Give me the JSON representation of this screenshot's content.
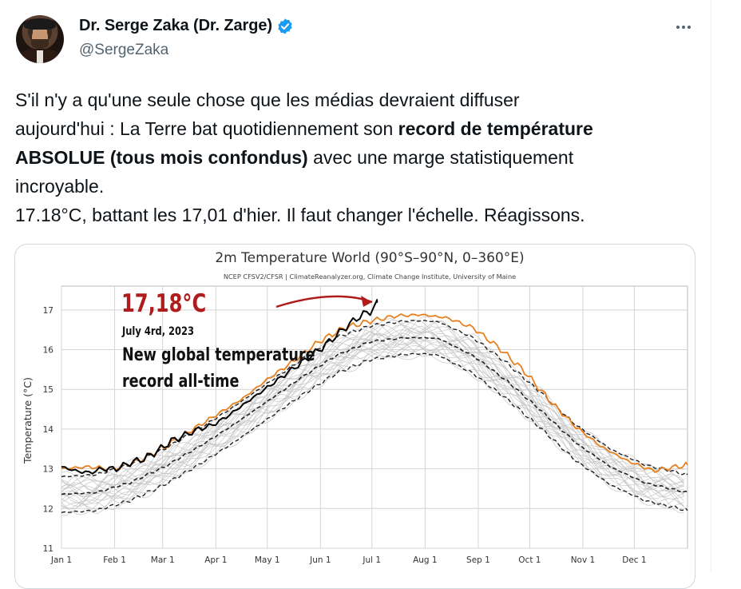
{
  "tweet": {
    "author": {
      "display_name": "Dr. Serge Zaka (Dr. Zarge)",
      "handle": "@SergeZaka",
      "verified": true,
      "verified_color": "#1d9bf0"
    },
    "more_icon": "more-dots-icon",
    "text": {
      "line1": "S'il n'y a qu'une seule chose que les médias devraient diffuser",
      "line2_prefix": "aujourd'hui : La Terre bat quotidiennement son ",
      "line2_bold": "record de température",
      "line3_bold": "ABSOLUE (tous mois confondus)",
      "line3_suffix": " avec une marge statistiquement",
      "line4": "incroyable.",
      "line5": "17.18°C, battant les 17,01 d'hier. Il faut changer l'échelle. Réagissons."
    }
  },
  "chart_data": {
    "type": "line",
    "title": "2m Temperature World (90°S–90°N, 0–360°E)",
    "subtitle": "NCEP CFSV2/CFSR | ClimateReanalyzer.org, Climate Change Institute, University of Maine",
    "ylabel": "Temperature (°C)",
    "ylim": [
      11,
      17.6
    ],
    "y_ticks": [
      "11",
      "12",
      "13",
      "14",
      "15",
      "16",
      "17"
    ],
    "x_ticks": [
      "Jan 1",
      "Feb 1",
      "Mar 1",
      "Apr 1",
      "May 1",
      "Jun 1",
      "Jul 1",
      "Aug 1",
      "Sep 1",
      "Oct 1",
      "Nov 1",
      "Dec 1"
    ],
    "x_tick_days": [
      0,
      31,
      59,
      90,
      120,
      151,
      181,
      212,
      243,
      273,
      304,
      334
    ],
    "grid": true,
    "colors": {
      "year_2023": "#000000",
      "year_2022": "#e8801f",
      "mean": "#222222",
      "sigma": "#222222",
      "history": "#c4c4c4",
      "annotation": "#b01c1c"
    },
    "annotation": {
      "value_text": "17,18°C",
      "date_text": "July 4rd, 2023",
      "headline_line1": "New global temperature",
      "headline_line2": "record all-time"
    },
    "series": [
      {
        "name": "",
        "style": "mean-dashed",
        "x": [
          0,
          20,
          40,
          60,
          80,
          100,
          120,
          140,
          160,
          180,
          200,
          210,
          220,
          240,
          260,
          280,
          300,
          320,
          340,
          365
        ],
        "y": [
          12.36,
          12.4,
          12.65,
          13.05,
          13.55,
          14.1,
          14.7,
          15.3,
          15.85,
          16.2,
          16.3,
          16.3,
          16.28,
          15.85,
          15.2,
          14.45,
          13.65,
          13.05,
          12.65,
          12.4
        ]
      },
      {
        "name": "",
        "style": "sigma-dashed",
        "x": [
          0,
          20,
          40,
          60,
          80,
          100,
          120,
          140,
          160,
          180,
          200,
          210,
          220,
          240,
          260,
          280,
          300,
          320,
          340,
          365
        ],
        "y": [
          12.8,
          12.85,
          13.1,
          13.5,
          14.0,
          14.55,
          15.15,
          15.75,
          16.3,
          16.6,
          16.72,
          16.73,
          16.7,
          16.3,
          15.65,
          14.9,
          14.1,
          13.5,
          13.1,
          12.85
        ]
      },
      {
        "name": "",
        "style": "sigma-dashed",
        "x": [
          0,
          20,
          40,
          60,
          80,
          100,
          120,
          140,
          160,
          180,
          200,
          210,
          220,
          240,
          260,
          280,
          300,
          320,
          340,
          365
        ],
        "y": [
          11.9,
          11.95,
          12.2,
          12.6,
          13.1,
          13.65,
          14.25,
          14.85,
          15.4,
          15.75,
          15.88,
          15.9,
          15.86,
          15.4,
          14.75,
          14.0,
          13.2,
          12.6,
          12.2,
          11.95
        ]
      },
      {
        "name": "",
        "style": "orange",
        "x": [
          0,
          15,
          30,
          45,
          60,
          75,
          90,
          105,
          120,
          135,
          150,
          165,
          180,
          195,
          210,
          225,
          240,
          255,
          270,
          285,
          300,
          315,
          330,
          345,
          365
        ],
        "y": [
          13.0,
          13.05,
          13.0,
          13.2,
          13.55,
          13.95,
          14.35,
          14.75,
          15.25,
          15.7,
          16.2,
          16.55,
          16.72,
          16.85,
          16.88,
          16.8,
          16.55,
          16.05,
          15.45,
          14.7,
          14.05,
          13.55,
          13.2,
          12.95,
          13.1
        ]
      },
      {
        "name": "",
        "style": "record",
        "x": [
          0,
          8,
          16,
          24,
          32,
          40,
          48,
          56,
          64,
          72,
          80,
          88,
          96,
          104,
          112,
          120,
          128,
          136,
          144,
          152,
          160,
          168,
          176,
          180,
          184
        ],
        "y": [
          13.05,
          12.95,
          12.9,
          13.0,
          13.0,
          13.15,
          13.25,
          13.45,
          13.7,
          13.85,
          14.0,
          14.1,
          14.3,
          14.55,
          14.8,
          15.05,
          15.3,
          15.55,
          15.8,
          16.05,
          16.35,
          16.65,
          16.9,
          16.95,
          17.18
        ]
      }
    ]
  }
}
